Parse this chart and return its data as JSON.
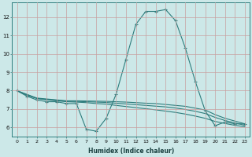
{
  "xlabel": "Humidex (Indice chaleur)",
  "x": [
    0,
    1,
    2,
    3,
    4,
    5,
    6,
    7,
    8,
    9,
    10,
    11,
    12,
    13,
    14,
    15,
    16,
    17,
    18,
    19,
    20,
    21,
    22,
    23
  ],
  "series_main": [
    8.0,
    7.7,
    7.5,
    7.4,
    7.4,
    7.3,
    7.3,
    5.9,
    5.8,
    6.5,
    7.8,
    9.7,
    11.6,
    12.3,
    12.3,
    12.4,
    11.8,
    10.3,
    8.5,
    6.9,
    6.1,
    6.3,
    6.2,
    6.2
  ],
  "series_a": [
    8.0,
    7.8,
    7.6,
    7.55,
    7.5,
    7.45,
    7.45,
    7.44,
    7.43,
    7.42,
    7.4,
    7.38,
    7.35,
    7.32,
    7.3,
    7.25,
    7.2,
    7.15,
    7.05,
    6.95,
    6.7,
    6.5,
    6.35,
    6.2
  ],
  "series_b": [
    8.0,
    7.78,
    7.58,
    7.52,
    7.48,
    7.43,
    7.42,
    7.4,
    7.38,
    7.36,
    7.32,
    7.28,
    7.24,
    7.2,
    7.16,
    7.12,
    7.06,
    6.98,
    6.88,
    6.76,
    6.55,
    6.38,
    6.25,
    6.12
  ],
  "series_c": [
    8.0,
    7.75,
    7.58,
    7.5,
    7.45,
    7.4,
    7.38,
    7.35,
    7.3,
    7.27,
    7.2,
    7.14,
    7.08,
    7.02,
    6.96,
    6.89,
    6.82,
    6.73,
    6.62,
    6.5,
    6.33,
    6.22,
    6.12,
    6.04
  ],
  "line_color": "#2e7d7d",
  "bg_color": "#cce8e8",
  "grid_color": "#c8a0a0",
  "ylim": [
    5.5,
    12.8
  ],
  "yticks": [
    6,
    7,
    8,
    9,
    10,
    11,
    12
  ],
  "markersize": 2.0,
  "linewidth": 0.8,
  "xlabel_fontsize": 5.5,
  "tick_fontsize": 4.5
}
